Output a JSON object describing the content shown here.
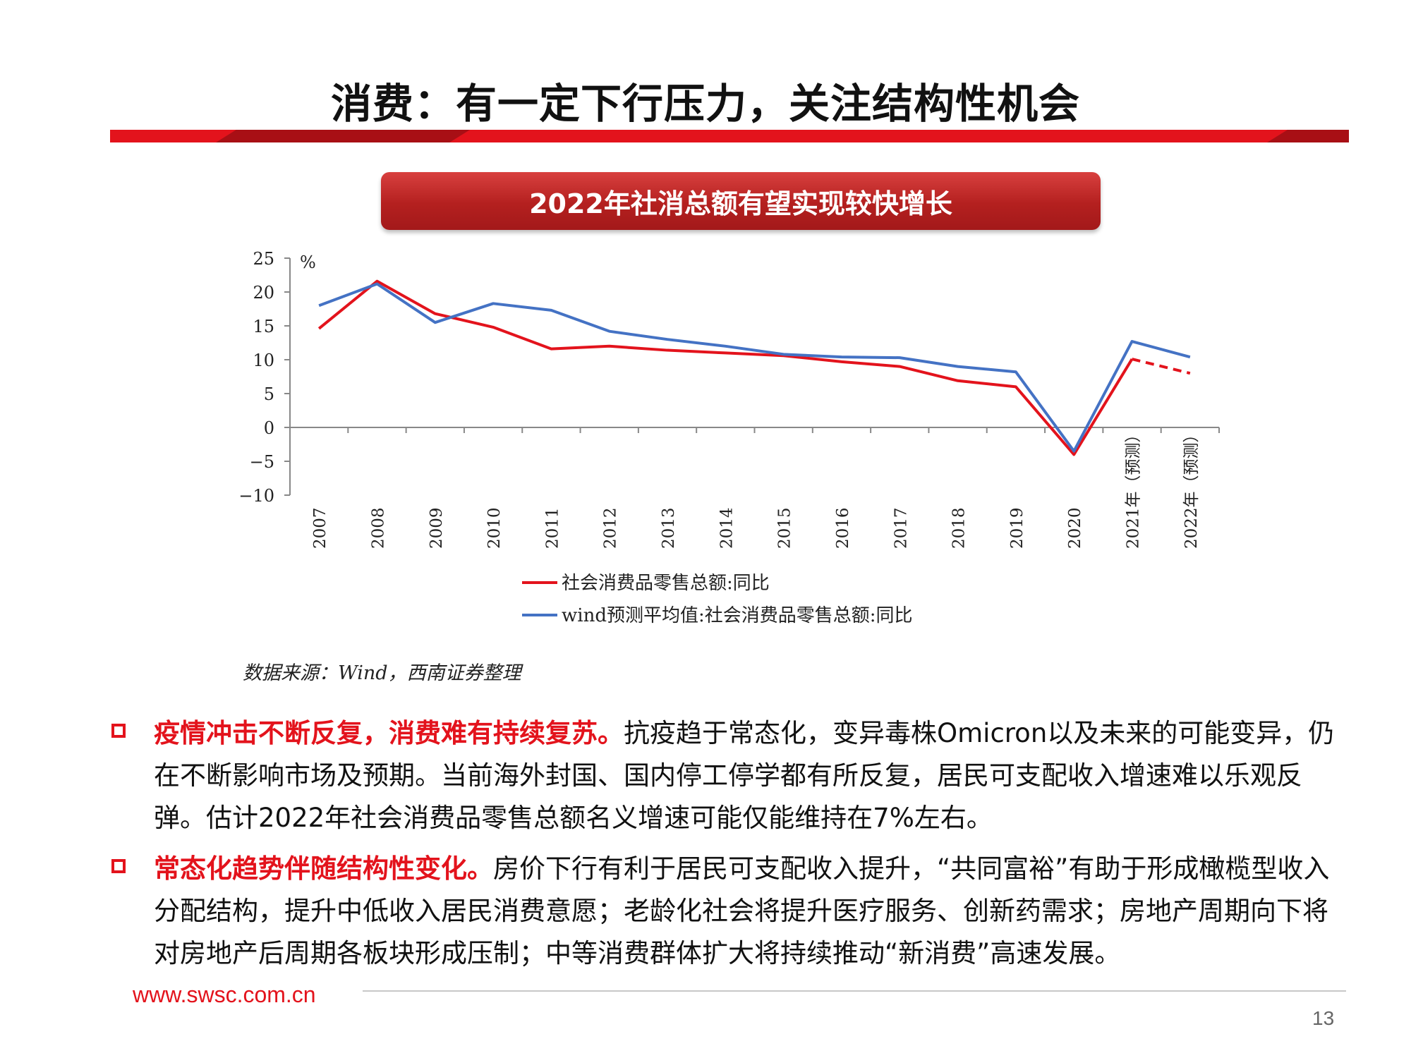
{
  "page": {
    "title": "消费：有一定下行压力，关注结构性机会",
    "chart_banner": "2022年社消总额有望实现较快增长",
    "source": "数据来源：Wind，西南证券整理",
    "bullets": [
      {
        "highlight": "疫情冲击不断反复，消费难有持续复苏。",
        "body": "抗疫趋于常态化，变异毒株Omicron以及未来的可能变异，仍在不断影响市场及预期。当前海外封国、国内停工停学都有所反复，居民可支配收入增速难以乐观反弹。估计2022年社会消费品零售总额名义增速可能仅能维持在7%左右。"
      },
      {
        "highlight": "常态化趋势伴随结构性变化。",
        "body": "房价下行有利于居民可支配收入提升，“共同富裕”有助于形成橄榄型收入分配结构，提升中低收入居民消费意愿；老龄化社会将提升医疗服务、创新药需求；房地产周期向下将对房地产后周期各板块形成压制；中等消费群体扩大将持续推动“新消费”高速发展。"
      }
    ],
    "footer_url": "www.swsc.com.cn",
    "page_number": "13"
  },
  "chart_data": {
    "type": "line",
    "title": "2022年社消总额有望实现较快增长",
    "ylabel": "%",
    "ylim": [
      -10,
      25
    ],
    "yticks": [
      25,
      20,
      15,
      10,
      5,
      0,
      -5,
      -10
    ],
    "categories": [
      "2007",
      "2008",
      "2009",
      "2010",
      "2011",
      "2012",
      "2013",
      "2014",
      "2015",
      "2016",
      "2017",
      "2018",
      "2019",
      "2020",
      "2021年（预测）",
      "2022年（预测）"
    ],
    "series": [
      {
        "name": "社会消费品零售总额:同比",
        "color": "#e3131c",
        "values": [
          14.6,
          21.6,
          16.8,
          14.8,
          11.6,
          12.0,
          11.4,
          11.0,
          10.6,
          9.7,
          9.0,
          6.9,
          6.0,
          -4.0,
          10.1,
          8.0
        ],
        "dashed_from_index": 14
      },
      {
        "name": "wind预测平均值:社会消费品零售总额:同比",
        "color": "#4472c4",
        "values": [
          18.0,
          21.2,
          15.5,
          18.3,
          17.3,
          14.2,
          13.0,
          12.0,
          10.8,
          10.4,
          10.3,
          9.0,
          8.2,
          -3.5,
          12.7,
          10.4
        ]
      }
    ]
  }
}
